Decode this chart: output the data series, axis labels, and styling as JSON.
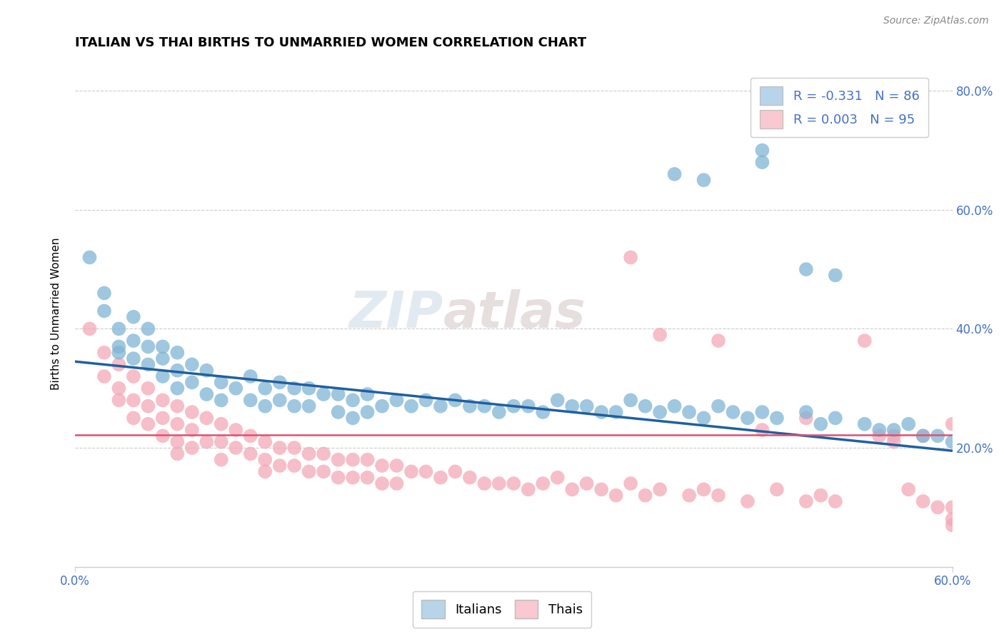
{
  "title": "ITALIAN VS THAI BIRTHS TO UNMARRIED WOMEN CORRELATION CHART",
  "source_text": "Source: ZipAtlas.com",
  "ylabel": "Births to Unmarried Women",
  "yaxis_ticks": [
    "20.0%",
    "40.0%",
    "60.0%",
    "80.0%"
  ],
  "yaxis_values": [
    0.2,
    0.4,
    0.6,
    0.8
  ],
  "xlim": [
    0.0,
    0.6
  ],
  "ylim": [
    0.0,
    0.85
  ],
  "italian_R": -0.331,
  "italian_N": 86,
  "thai_R": 0.003,
  "thai_N": 95,
  "italian_color": "#7fb5d5",
  "thai_color": "#f4a8b8",
  "italian_line_color": "#2060a0",
  "thai_line_color": "#e05070",
  "legend_italian_box": "#b8d4ea",
  "legend_thai_box": "#f9c8d0",
  "watermark_color": "#d0dce8",
  "watermark_color2": "#d8c8c8",
  "background_color": "#ffffff",
  "grid_color": "#cccccc",
  "it_trend_x0": 0.0,
  "it_trend_y0": 0.345,
  "it_trend_x1": 0.6,
  "it_trend_y1": 0.195,
  "th_trend_x0": 0.0,
  "th_trend_y0": 0.222,
  "th_trend_x1": 0.6,
  "th_trend_y1": 0.222,
  "it_x": [
    0.01,
    0.02,
    0.02,
    0.03,
    0.03,
    0.03,
    0.04,
    0.04,
    0.04,
    0.05,
    0.05,
    0.05,
    0.06,
    0.06,
    0.06,
    0.07,
    0.07,
    0.07,
    0.08,
    0.08,
    0.09,
    0.09,
    0.1,
    0.1,
    0.11,
    0.12,
    0.12,
    0.13,
    0.13,
    0.14,
    0.14,
    0.15,
    0.15,
    0.16,
    0.16,
    0.17,
    0.18,
    0.18,
    0.19,
    0.19,
    0.2,
    0.2,
    0.21,
    0.22,
    0.23,
    0.24,
    0.25,
    0.26,
    0.27,
    0.28,
    0.29,
    0.3,
    0.31,
    0.32,
    0.33,
    0.34,
    0.35,
    0.36,
    0.37,
    0.38,
    0.39,
    0.4,
    0.41,
    0.42,
    0.43,
    0.44,
    0.45,
    0.46,
    0.47,
    0.48,
    0.5,
    0.51,
    0.52,
    0.54,
    0.55,
    0.56,
    0.57,
    0.58,
    0.59,
    0.6,
    0.41,
    0.43,
    0.47,
    0.47,
    0.5,
    0.52
  ],
  "it_y": [
    0.52,
    0.46,
    0.43,
    0.4,
    0.37,
    0.36,
    0.42,
    0.38,
    0.35,
    0.4,
    0.37,
    0.34,
    0.37,
    0.35,
    0.32,
    0.36,
    0.33,
    0.3,
    0.34,
    0.31,
    0.33,
    0.29,
    0.31,
    0.28,
    0.3,
    0.32,
    0.28,
    0.3,
    0.27,
    0.31,
    0.28,
    0.3,
    0.27,
    0.3,
    0.27,
    0.29,
    0.29,
    0.26,
    0.28,
    0.25,
    0.29,
    0.26,
    0.27,
    0.28,
    0.27,
    0.28,
    0.27,
    0.28,
    0.27,
    0.27,
    0.26,
    0.27,
    0.27,
    0.26,
    0.28,
    0.27,
    0.27,
    0.26,
    0.26,
    0.28,
    0.27,
    0.26,
    0.27,
    0.26,
    0.25,
    0.27,
    0.26,
    0.25,
    0.26,
    0.25,
    0.26,
    0.24,
    0.25,
    0.24,
    0.23,
    0.23,
    0.24,
    0.22,
    0.22,
    0.21,
    0.66,
    0.65,
    0.7,
    0.68,
    0.5,
    0.49
  ],
  "th_x": [
    0.01,
    0.02,
    0.02,
    0.03,
    0.03,
    0.03,
    0.04,
    0.04,
    0.04,
    0.05,
    0.05,
    0.05,
    0.06,
    0.06,
    0.06,
    0.07,
    0.07,
    0.07,
    0.07,
    0.08,
    0.08,
    0.08,
    0.09,
    0.09,
    0.1,
    0.1,
    0.1,
    0.11,
    0.11,
    0.12,
    0.12,
    0.13,
    0.13,
    0.13,
    0.14,
    0.14,
    0.15,
    0.15,
    0.16,
    0.16,
    0.17,
    0.17,
    0.18,
    0.18,
    0.19,
    0.19,
    0.2,
    0.2,
    0.21,
    0.21,
    0.22,
    0.22,
    0.23,
    0.24,
    0.25,
    0.26,
    0.27,
    0.28,
    0.29,
    0.3,
    0.31,
    0.32,
    0.33,
    0.34,
    0.35,
    0.36,
    0.37,
    0.38,
    0.39,
    0.4,
    0.42,
    0.43,
    0.44,
    0.46,
    0.48,
    0.5,
    0.51,
    0.52,
    0.55,
    0.56,
    0.57,
    0.58,
    0.59,
    0.6,
    0.38,
    0.4,
    0.44,
    0.47,
    0.5,
    0.54,
    0.56,
    0.58,
    0.6,
    0.6,
    0.6
  ],
  "th_y": [
    0.4,
    0.36,
    0.32,
    0.34,
    0.3,
    0.28,
    0.32,
    0.28,
    0.25,
    0.3,
    0.27,
    0.24,
    0.28,
    0.25,
    0.22,
    0.27,
    0.24,
    0.21,
    0.19,
    0.26,
    0.23,
    0.2,
    0.25,
    0.21,
    0.24,
    0.21,
    0.18,
    0.23,
    0.2,
    0.22,
    0.19,
    0.21,
    0.18,
    0.16,
    0.2,
    0.17,
    0.2,
    0.17,
    0.19,
    0.16,
    0.19,
    0.16,
    0.18,
    0.15,
    0.18,
    0.15,
    0.18,
    0.15,
    0.17,
    0.14,
    0.17,
    0.14,
    0.16,
    0.16,
    0.15,
    0.16,
    0.15,
    0.14,
    0.14,
    0.14,
    0.13,
    0.14,
    0.15,
    0.13,
    0.14,
    0.13,
    0.12,
    0.14,
    0.12,
    0.13,
    0.12,
    0.13,
    0.12,
    0.11,
    0.13,
    0.11,
    0.12,
    0.11,
    0.22,
    0.21,
    0.13,
    0.11,
    0.1,
    0.08,
    0.52,
    0.39,
    0.38,
    0.23,
    0.25,
    0.38,
    0.22,
    0.22,
    0.24,
    0.1,
    0.07
  ]
}
